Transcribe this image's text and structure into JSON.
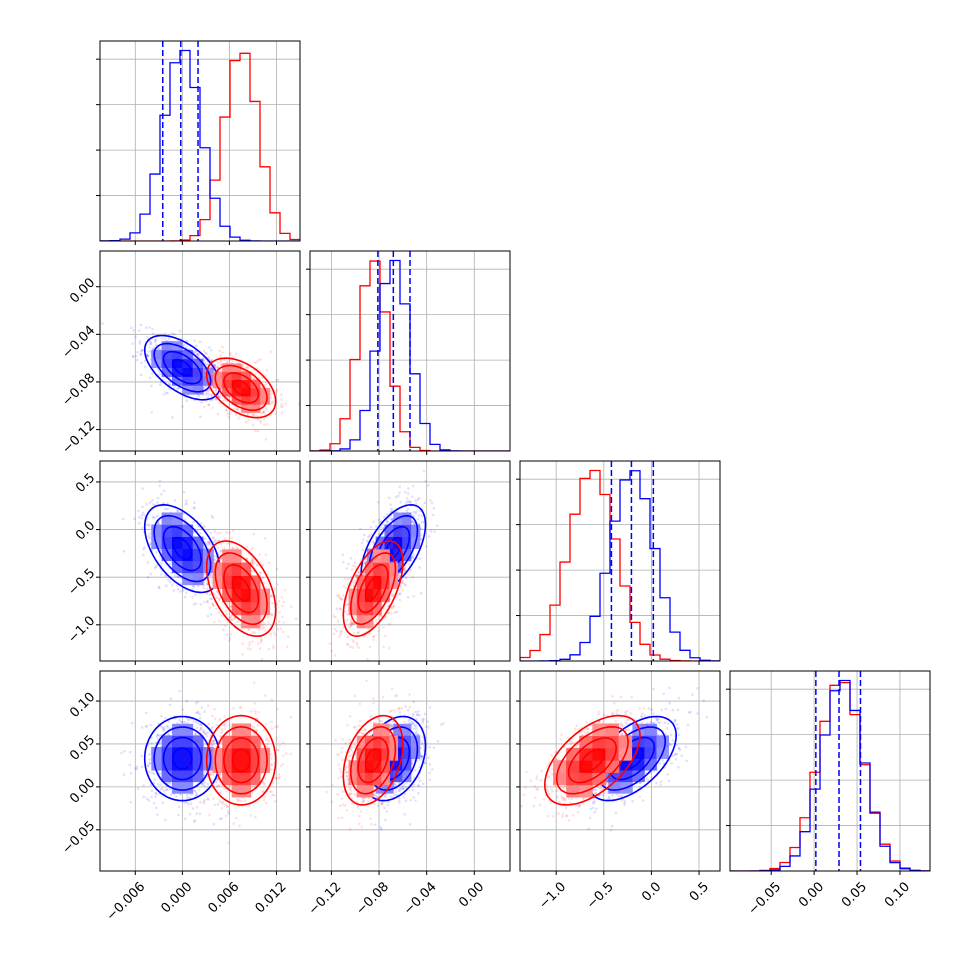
{
  "chart_data": {
    "type": "corner",
    "title": "",
    "legend": "none",
    "grid": true,
    "colors": {
      "a": "#0000ff",
      "b": "#ff0000"
    },
    "parameters": [
      {
        "label": "",
        "range": [
          -0.0105,
          0.015
        ],
        "ticks": [
          -0.006,
          0.0,
          0.006,
          0.012
        ],
        "tick_labels": [
          "−0.006",
          "0.000",
          "0.006",
          "0.012"
        ]
      },
      {
        "label": "",
        "range": [
          -0.138,
          0.03
        ],
        "ticks": [
          -0.12,
          -0.08,
          -0.04,
          0.0
        ],
        "tick_labels": [
          "−0.12",
          "−0.08",
          "−0.04",
          "0.00"
        ]
      },
      {
        "label": "",
        "range": [
          -1.38,
          0.72
        ],
        "ticks": [
          -1.0,
          -0.5,
          0.0,
          0.5
        ],
        "tick_labels": [
          "−1.0",
          "−0.5",
          "0.0",
          "0.5"
        ]
      },
      {
        "label": "",
        "range": [
          -0.098,
          0.135
        ],
        "ticks": [
          -0.05,
          0.0,
          0.05,
          0.1
        ],
        "tick_labels": [
          "−0.05",
          "0.00",
          "0.05",
          "0.10"
        ]
      }
    ],
    "series": [
      {
        "color": "#0000ff",
        "means": [
          0.0,
          -0.068,
          -0.2,
          0.033
        ],
        "sigmas": [
          0.0024,
          0.0135,
          0.23,
          0.0245
        ],
        "quantiles": [
          [
            -0.0025,
            -0.0002,
            0.002
          ],
          [
            -0.081,
            -0.068,
            -0.054
          ],
          [
            -0.42,
            -0.21,
            0.02
          ],
          [
            0.002,
            0.029,
            0.054
          ]
        ],
        "show_quantiles": true
      },
      {
        "color": "#ff0000",
        "means": [
          0.0075,
          -0.085,
          -0.62,
          0.031
        ],
        "sigmas": [
          0.0022,
          0.0125,
          0.25,
          0.026
        ],
        "quantiles": [],
        "show_quantiles": false
      }
    ],
    "correlations": {
      "0-1": [
        -0.55,
        -0.45
      ],
      "0-2": [
        -0.5,
        -0.45
      ],
      "0-3": [
        0.0,
        0.0
      ],
      "1-2": [
        0.55,
        0.55
      ],
      "1-3": [
        0.3,
        0.35
      ],
      "2-3": [
        0.55,
        0.55
      ]
    }
  }
}
